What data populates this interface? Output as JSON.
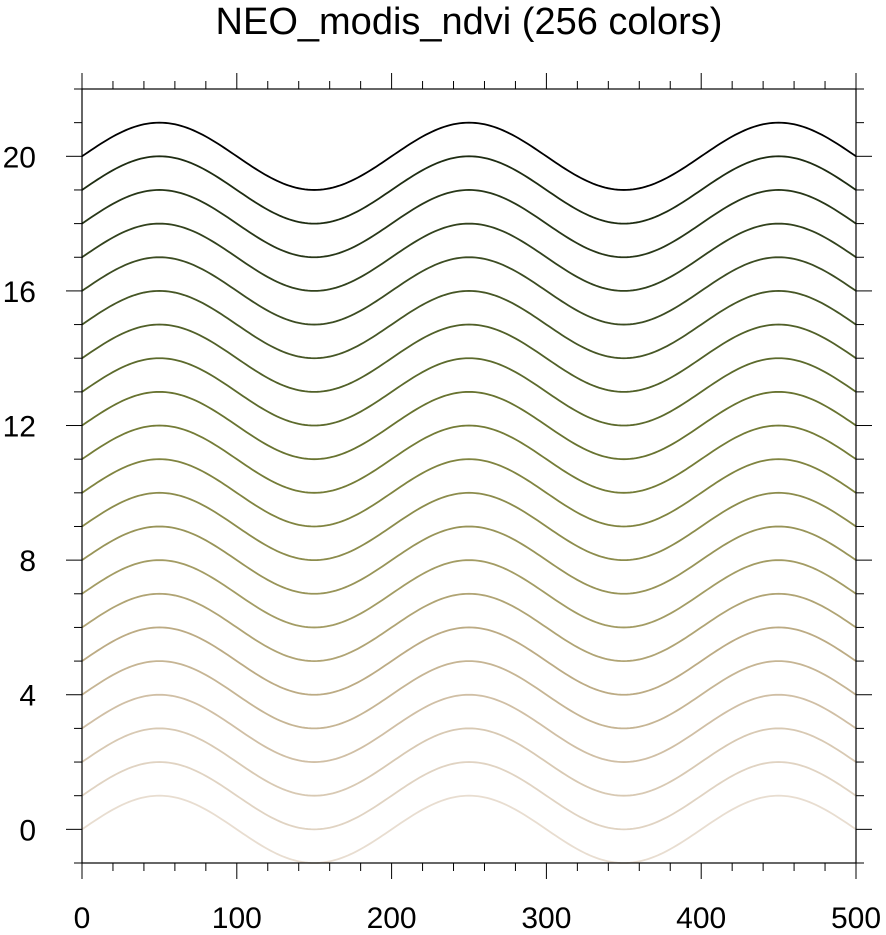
{
  "chart_data": {
    "type": "line",
    "title": "NEO_modis_ndvi (256 colors)",
    "xlabel": "",
    "ylabel": "",
    "xlim": [
      0,
      500
    ],
    "ylim": [
      -1,
      22
    ],
    "x_ticks": [
      "0",
      "100",
      "200",
      "300",
      "400",
      "500"
    ],
    "y_ticks": [
      "0",
      "4",
      "8",
      "12",
      "16",
      "20"
    ],
    "x_minor_step": 20,
    "y_minor_step": 1,
    "grid": false,
    "curve_function": "offset + sin(2*pi*x/200)",
    "x_samples": [
      0,
      25,
      50,
      75,
      100,
      125,
      150,
      175,
      200,
      225,
      250,
      275,
      300,
      325,
      350,
      375,
      400,
      425,
      450,
      475,
      500
    ],
    "series": [
      {
        "offset": 0,
        "color": "#e8ddd0"
      },
      {
        "offset": 1,
        "color": "#e0d3c2"
      },
      {
        "offset": 2,
        "color": "#d8c9b3"
      },
      {
        "offset": 3,
        "color": "#d0bfa5"
      },
      {
        "offset": 4,
        "color": "#c6b594"
      },
      {
        "offset": 5,
        "color": "#bcab84"
      },
      {
        "offset": 6,
        "color": "#b0a474"
      },
      {
        "offset": 7,
        "color": "#a39c64"
      },
      {
        "offset": 8,
        "color": "#989458"
      },
      {
        "offset": 9,
        "color": "#8c8c4c"
      },
      {
        "offset": 10,
        "color": "#808440"
      },
      {
        "offset": 11,
        "color": "#747c37"
      },
      {
        "offset": 12,
        "color": "#687330"
      },
      {
        "offset": 13,
        "color": "#5c6a2c"
      },
      {
        "offset": 14,
        "color": "#516028"
      },
      {
        "offset": 15,
        "color": "#465625"
      },
      {
        "offset": 16,
        "color": "#3c4c22"
      },
      {
        "offset": 17,
        "color": "#32421d"
      },
      {
        "offset": 18,
        "color": "#283718"
      },
      {
        "offset": 19,
        "color": "#1e2c12"
      },
      {
        "offset": 20,
        "color": "#000000"
      }
    ]
  }
}
